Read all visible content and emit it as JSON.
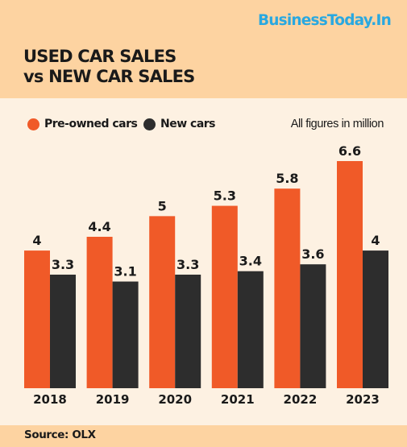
{
  "brand": "BusinessToday.In",
  "title_line1": "USED CAR SALES",
  "title_line2": "vs NEW CAR SALES",
  "note": "All figures in million",
  "source": "Source: OLX",
  "colors": {
    "pre_owned": "#f05a28",
    "new": "#2d2d2d"
  },
  "chart_data": {
    "type": "bar",
    "categories": [
      "2018",
      "2019",
      "2020",
      "2021",
      "2022",
      "2023"
    ],
    "series": [
      {
        "name": "Pre-owned cars",
        "values": [
          4,
          4.4,
          5,
          5.3,
          5.8,
          6.6
        ],
        "value_labels": [
          "4",
          "4.4",
          "5",
          "5.3",
          "5.8",
          "6.6"
        ]
      },
      {
        "name": "New cars",
        "values": [
          3.3,
          3.1,
          3.3,
          3.4,
          3.6,
          4
        ],
        "value_labels": [
          "3.3",
          "3.1",
          "3.3",
          "3.4",
          "3.6",
          "4"
        ]
      }
    ],
    "ylim": [
      0,
      6.6
    ],
    "grid": false,
    "legend": "top-left"
  }
}
